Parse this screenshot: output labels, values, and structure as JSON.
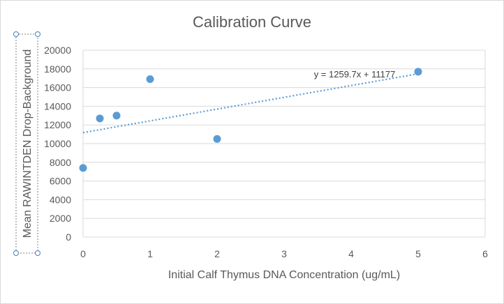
{
  "chart_data": {
    "type": "scatter",
    "title": "Calibration Curve",
    "xlabel": "Initial Calf Thymus DNA Concentration (ug/mL)",
    "ylabel": "Mean RAWINTDEN Drop-Background",
    "xlim": [
      0,
      6
    ],
    "ylim": [
      0,
      20000
    ],
    "x_ticks": [
      "0",
      "1",
      "2",
      "3",
      "4",
      "5",
      "6"
    ],
    "y_ticks": [
      "0",
      "2000",
      "4000",
      "6000",
      "8000",
      "10000",
      "12000",
      "14000",
      "16000",
      "18000",
      "20000"
    ],
    "grid": true,
    "series": [
      {
        "name": "Mean RAWINTDEN Drop-Background",
        "x": [
          0,
          0.25,
          0.5,
          1,
          2,
          5
        ],
        "y": [
          7400,
          12700,
          13000,
          16900,
          10500,
          17700
        ]
      }
    ],
    "trendline": {
      "slope": 1259.7,
      "intercept": 11177,
      "equation": "y = 1259.7x + 11177"
    },
    "colors": {
      "series": "#5b9bd5",
      "text": "#595959",
      "grid": "#d9d9d9"
    }
  }
}
